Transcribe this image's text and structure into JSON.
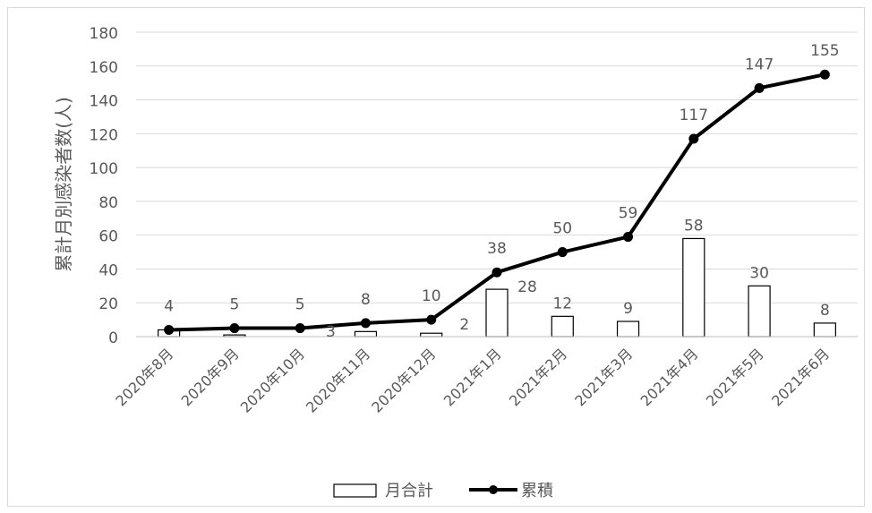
{
  "chart_data": {
    "type": "bar+line",
    "ylabel": "累計月別感染者数(人)",
    "ylim": [
      0,
      180
    ],
    "yticks": [
      0,
      20,
      40,
      60,
      80,
      100,
      120,
      140,
      160,
      180
    ],
    "categories": [
      "2020年8月",
      "2020年9月",
      "2020年10月",
      "2020年11月",
      "2020年12月",
      "2021年1月",
      "2021年2月",
      "2021年3月",
      "2021年4月",
      "2021年5月",
      "2021年6月"
    ],
    "series": [
      {
        "name": "月合計",
        "type": "bar",
        "values": [
          4,
          1,
          0,
          3,
          2,
          28,
          12,
          9,
          58,
          30,
          8
        ],
        "labels": [
          "",
          "",
          "",
          "3",
          "2",
          "28",
          "12",
          "9",
          "58",
          "30",
          "8"
        ]
      },
      {
        "name": "累積",
        "type": "line",
        "values": [
          4,
          5,
          5,
          8,
          10,
          38,
          50,
          59,
          117,
          147,
          155
        ],
        "labels": [
          "4",
          "5",
          "5",
          "8",
          "10",
          "38",
          "50",
          "59",
          "117",
          "147",
          "155"
        ]
      }
    ],
    "grid": true,
    "legend": "bottom",
    "colors": {
      "bar_fill": "#ffffff",
      "bar_stroke": "#000000",
      "line": "#000000",
      "grid": "#d9d9d9",
      "text": "#595959"
    }
  }
}
